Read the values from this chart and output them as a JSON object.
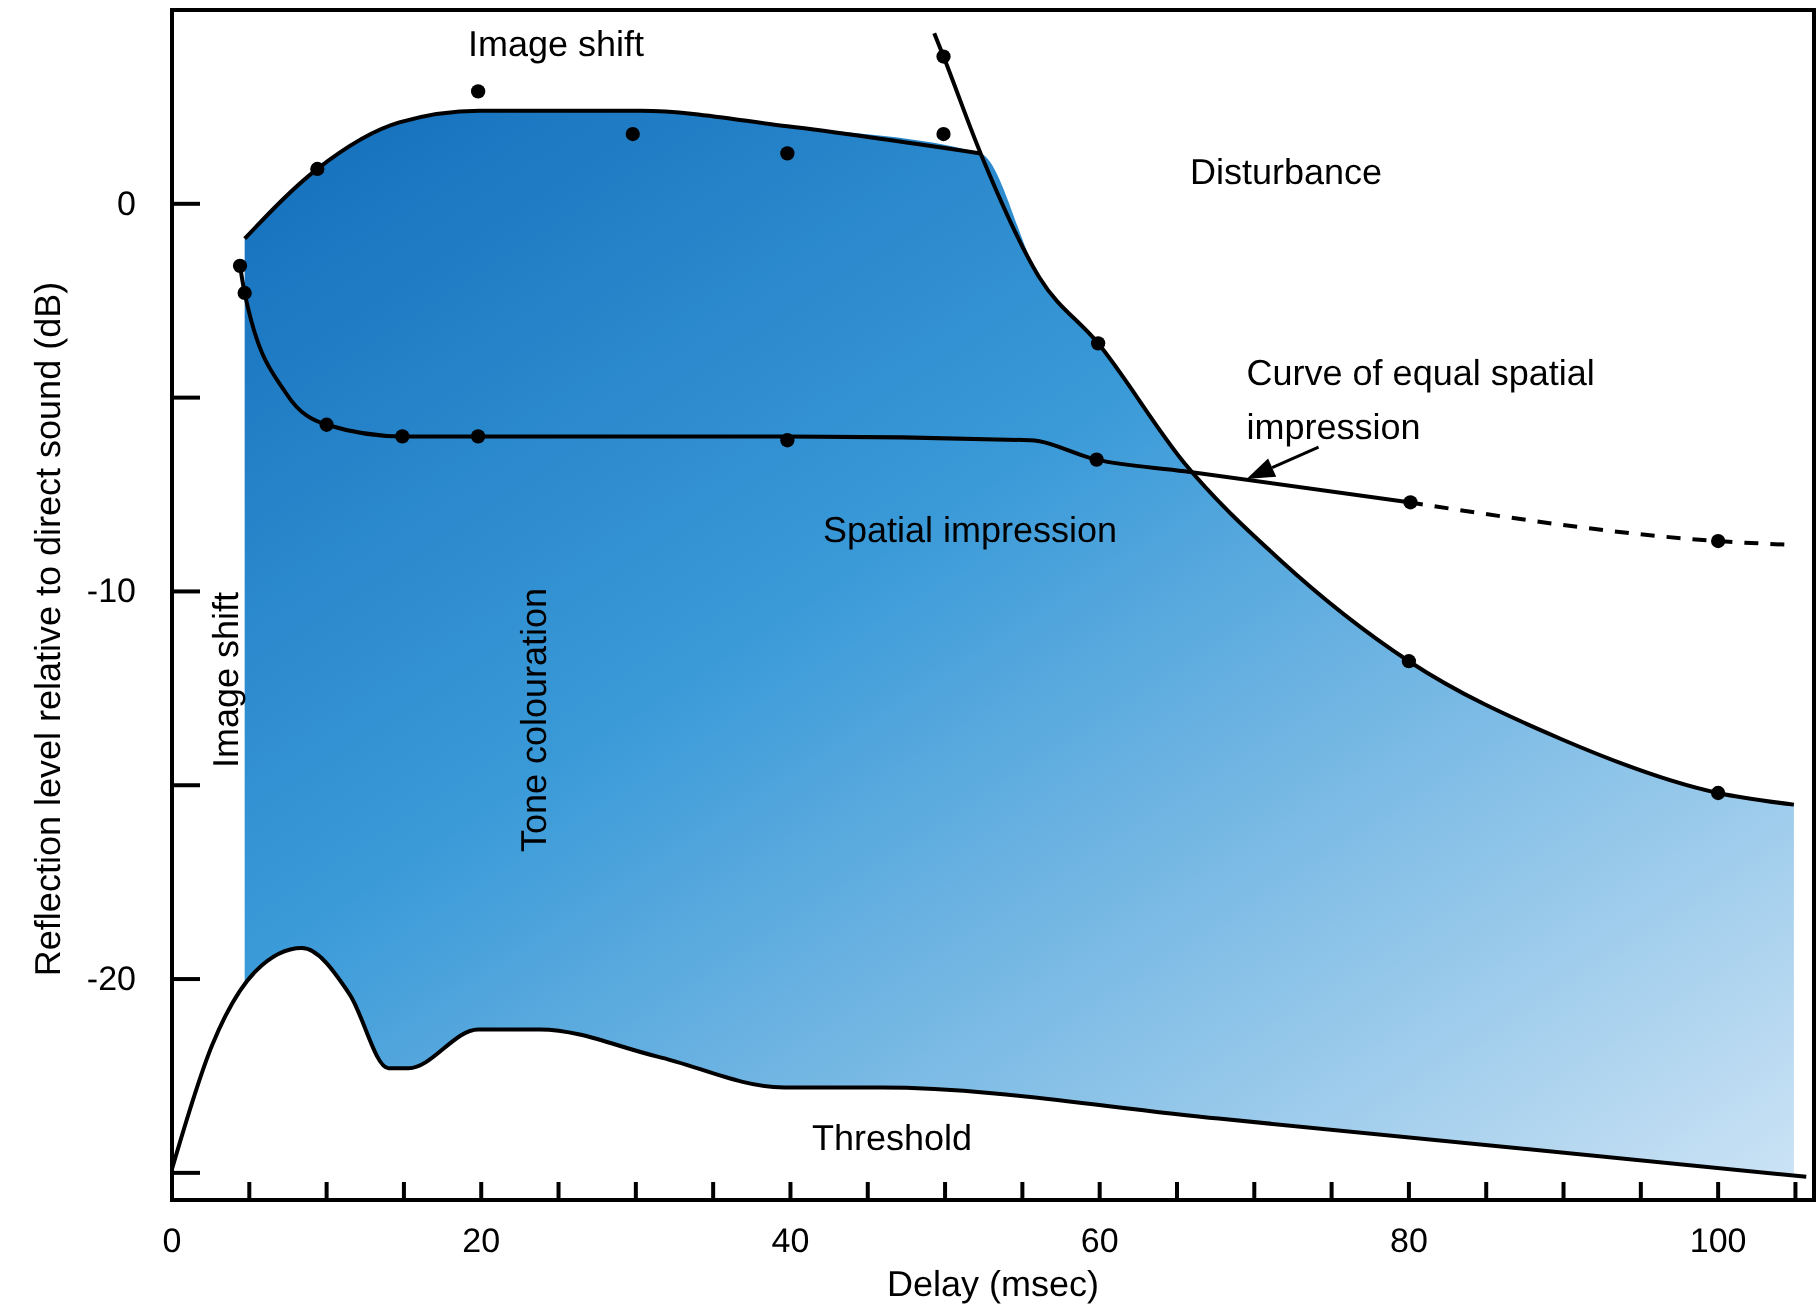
{
  "chart_data": {
    "type": "line",
    "xlabel": "Delay (msec)",
    "ylabel": "Reflection level relative to direct sound (dB)",
    "xlim": [
      0,
      106.2
    ],
    "ylim": [
      -25.7,
      5
    ],
    "xticks": [
      0,
      {
        "value": 5,
        "label": null
      },
      {
        "value": 10,
        "label": null
      },
      {
        "value": 15,
        "label": null
      },
      20,
      {
        "value": 25,
        "label": null
      },
      {
        "value": 30,
        "label": null
      },
      {
        "value": 35,
        "label": null
      },
      40,
      {
        "value": 45,
        "label": null
      },
      {
        "value": 50,
        "label": null
      },
      {
        "value": 55,
        "label": null
      },
      60,
      {
        "value": 65,
        "label": null
      },
      {
        "value": 70,
        "label": null
      },
      {
        "value": 75,
        "label": null
      },
      80,
      {
        "value": 85,
        "label": null
      },
      {
        "value": 90,
        "label": null
      },
      {
        "value": 95,
        "label": null
      },
      100,
      {
        "value": 105,
        "label": null
      }
    ],
    "yticks": [
      {
        "value": -25,
        "label": null
      },
      -20,
      {
        "value": -15,
        "label": null
      },
      -10,
      {
        "value": -5,
        "label": null
      },
      0
    ],
    "grid": false,
    "line_style": "solid",
    "series": [
      {
        "color": "#000000",
        "x": [
          0,
          2.6,
          5.4,
          8.4,
          11.5,
          14,
          15.3,
          19.8,
          23.8,
          31.4,
          39.6,
          45.8,
          67.7,
          105.7
        ],
        "values": [
          -24.9,
          -21.7,
          -19.8,
          -19.2,
          -20.4,
          -22.3,
          -22.3,
          -21.3,
          -21.3,
          -22.0,
          -22.8,
          -22.8,
          -23.6,
          -25.1
        ]
      },
      {
        "color": "#000000",
        "x": [
          4.7,
          9.4,
          14.7,
          19.9,
          25.1,
          30.3,
          39.8,
          52.3
        ],
        "values": [
          -0.9,
          0.9,
          2.1,
          2.4,
          2.4,
          2.4,
          2.0,
          1.3
        ]
      },
      {
        "color": "#000000",
        "x": [
          49.3,
          49.9,
          52.3,
          56.1,
          59.9,
          65.5,
          71.7,
          80,
          89.8,
          100,
          104.9
        ],
        "values": [
          4.4,
          3.8,
          1.3,
          -1.9,
          -3.6,
          -6.7,
          -9.2,
          -11.8,
          -13.8,
          -15.2,
          -15.5
        ]
      },
      {
        "color": "#000000",
        "x": [
          4.4,
          4.7,
          7.4,
          10,
          14.9,
          19.8,
          39.8,
          55.5,
          59.8,
          65.5,
          80
        ],
        "values": [
          -1.6,
          -2.3,
          -4.9,
          -5.7,
          -6.0,
          -6.0,
          -6.0,
          -6.1,
          -6.6,
          -6.9,
          -7.7
        ]
      },
      {
        "color": "#000000",
        "line_style": "dashed",
        "x": [
          80,
          100,
          104.7
        ],
        "values": [
          -7.7,
          -8.7,
          -8.8
        ]
      },
      {
        "type": "scatter",
        "color": "#000000",
        "marker": "circle",
        "x": [
          9.4,
          19.8,
          29.8,
          39.8,
          49.9,
          49.9,
          59.9,
          80,
          100,
          4.4,
          4.7,
          10,
          14.9,
          19.8,
          39.8,
          59.8,
          80.1,
          100
        ],
        "values": [
          0.9,
          2.9,
          1.8,
          1.3,
          1.8,
          3.8,
          -3.6,
          -11.8,
          -15.2,
          -1.6,
          -2.3,
          -5.7,
          -6.0,
          -6.0,
          -6.1,
          -6.6,
          -7.7,
          -8.7
        ]
      }
    ],
    "annotations": [
      "Image shift",
      "Disturbance",
      {
        "text": "Curve of equal spatial impression",
        "x": 69.5,
        "y": -7.1
      },
      "Spatial impression",
      "Threshold",
      "Image shift",
      "Tone colouration"
    ]
  }
}
